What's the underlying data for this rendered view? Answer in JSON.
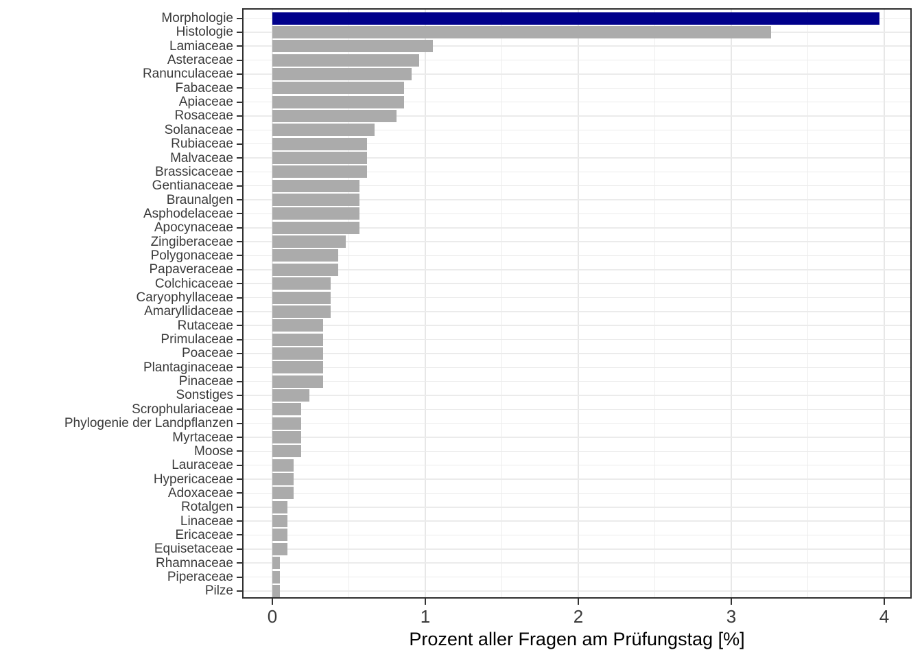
{
  "chart_data": {
    "type": "bar",
    "orientation": "horizontal",
    "title": "",
    "xlabel": "Prozent aller Fragen am Prüfungstag [%]",
    "ylabel": "",
    "xlim": [
      0,
      4.17
    ],
    "x_ticks": [
      0,
      1,
      2,
      3,
      4
    ],
    "x_minor_ticks": [
      0.5,
      1.5,
      2.5,
      3.5
    ],
    "grid": "on",
    "legend_position": "none",
    "highlight_category": "Morphologie",
    "categories": [
      "Morphologie",
      "Histologie",
      "Lamiaceae",
      "Asteraceae",
      "Ranunculaceae",
      "Fabaceae",
      "Apiaceae",
      "Rosaceae",
      "Solanaceae",
      "Rubiaceae",
      "Malvaceae",
      "Brassicaceae",
      "Gentianaceae",
      "Braunalgen",
      "Asphodelaceae",
      "Apocynaceae",
      "Zingiberaceae",
      "Polygonaceae",
      "Papaveraceae",
      "Colchicaceae",
      "Caryophyllaceae",
      "Amaryllidaceae",
      "Rutaceae",
      "Primulaceae",
      "Poaceae",
      "Plantaginaceae",
      "Pinaceae",
      "Sonstiges",
      "Scrophulariaceae",
      "Phylogenie der Landpflanzen",
      "Myrtaceae",
      "Moose",
      "Lauraceae",
      "Hypericaceae",
      "Adoxaceae",
      "Rotalgen",
      "Linaceae",
      "Ericaceae",
      "Equisetaceae",
      "Rhamnaceae",
      "Piperaceae",
      "Pilze"
    ],
    "values": [
      3.97,
      3.26,
      1.05,
      0.96,
      0.91,
      0.86,
      0.86,
      0.81,
      0.67,
      0.62,
      0.62,
      0.62,
      0.57,
      0.57,
      0.57,
      0.57,
      0.48,
      0.43,
      0.43,
      0.38,
      0.38,
      0.38,
      0.33,
      0.33,
      0.33,
      0.33,
      0.33,
      0.24,
      0.19,
      0.19,
      0.19,
      0.19,
      0.14,
      0.14,
      0.14,
      0.1,
      0.1,
      0.1,
      0.1,
      0.05,
      0.05,
      0.05
    ]
  },
  "colors": {
    "highlight_bar": "#00008B",
    "default_bar": "#ABABAB",
    "panel_border": "#2F2F2F",
    "grid_major": "#E7E7E7",
    "grid_minor": "#EDEDED",
    "axis_text": "#3A3A3A",
    "axis_title": "#000000",
    "background": "#FFFFFF"
  }
}
